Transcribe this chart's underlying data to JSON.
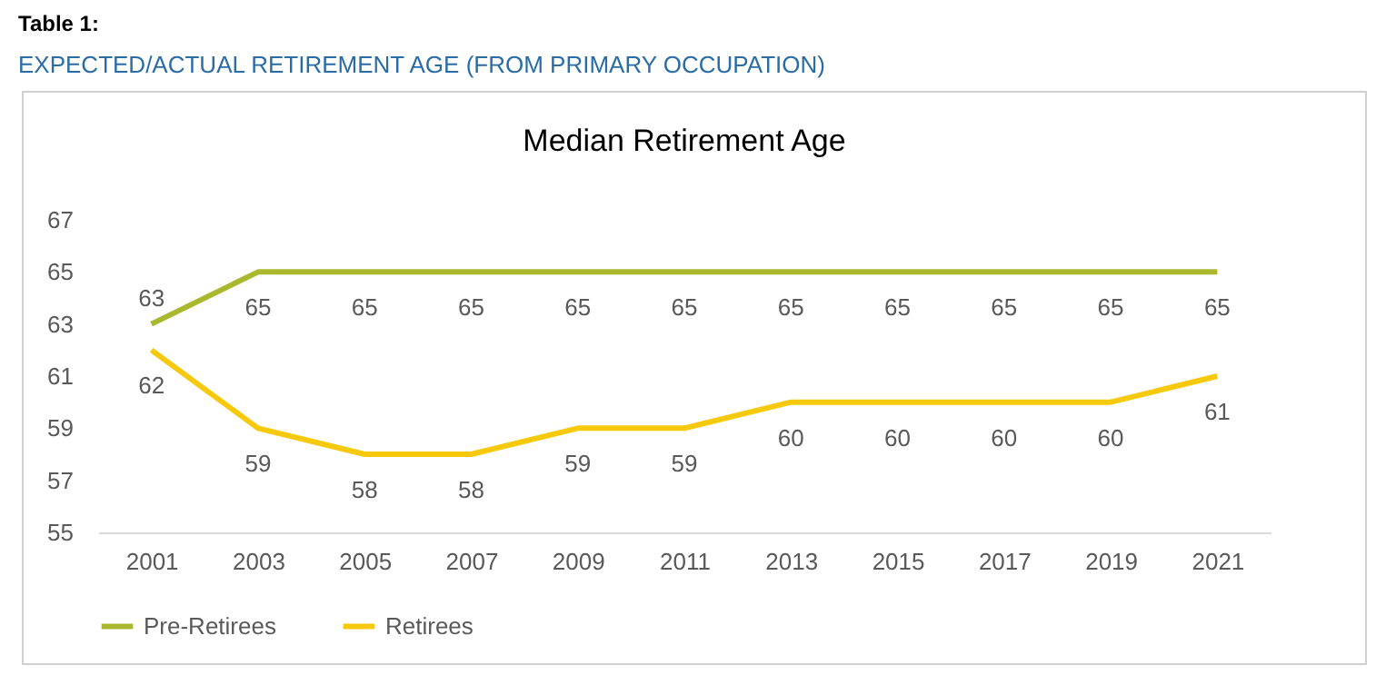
{
  "chart_data": {
    "type": "line",
    "title": "Median Retirement Age",
    "annotations": [
      "Table 1:",
      "EXPECTED/ACTUAL RETIREMENT AGE (FROM PRIMARY OCCUPATION)"
    ],
    "categories": [
      "2001",
      "2003",
      "2005",
      "2007",
      "2009",
      "2011",
      "2013",
      "2015",
      "2017",
      "2019",
      "2021"
    ],
    "series": [
      {
        "name": "Pre-Retirees",
        "color": "#aab82e",
        "values": [
          63,
          65,
          65,
          65,
          65,
          65,
          65,
          65,
          65,
          65,
          65
        ]
      },
      {
        "name": "Retirees",
        "color": "#f7c90c",
        "values": [
          62,
          59,
          58,
          58,
          59,
          59,
          60,
          60,
          60,
          60,
          61
        ]
      }
    ],
    "ylim": [
      55,
      67
    ],
    "yticks": [
      55,
      57,
      59,
      61,
      63,
      65,
      67
    ],
    "grid": false,
    "legend": "bottom",
    "data_labels": true,
    "marker": "none",
    "line_style": "solid"
  }
}
